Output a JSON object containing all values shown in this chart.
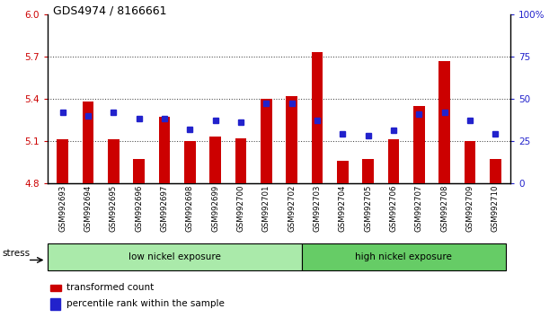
{
  "title": "GDS4974 / 8166661",
  "samples": [
    "GSM992693",
    "GSM992694",
    "GSM992695",
    "GSM992696",
    "GSM992697",
    "GSM992698",
    "GSM992699",
    "GSM992700",
    "GSM992701",
    "GSM992702",
    "GSM992703",
    "GSM992704",
    "GSM992705",
    "GSM992706",
    "GSM992707",
    "GSM992708",
    "GSM992709",
    "GSM992710"
  ],
  "red_values": [
    5.11,
    5.38,
    5.11,
    4.97,
    5.27,
    5.1,
    5.13,
    5.12,
    5.4,
    5.42,
    5.73,
    4.96,
    4.97,
    5.11,
    5.35,
    5.67,
    5.1,
    4.97
  ],
  "blue_values": [
    42,
    40,
    42,
    38,
    38,
    32,
    37,
    36,
    47,
    47,
    37,
    29,
    28,
    31,
    41,
    42,
    37,
    29
  ],
  "ylim_left": [
    4.8,
    6.0
  ],
  "ylim_right": [
    0,
    100
  ],
  "yticks_left": [
    4.8,
    5.1,
    5.4,
    5.7,
    6.0
  ],
  "yticks_right": [
    0,
    25,
    50,
    75,
    100
  ],
  "bar_bottom": 4.8,
  "red_color": "#cc0000",
  "blue_color": "#2222cc",
  "group1_label": "low nickel exposure",
  "group2_label": "high nickel exposure",
  "group1_count": 10,
  "stress_label": "stress",
  "legend_red": "transformed count",
  "legend_blue": "percentile rank within the sample",
  "group1_color": "#aaeaaa",
  "group2_color": "#66cc66",
  "hgrid_color": "#444444",
  "bg_plot": "#ffffff",
  "tick_area_color": "#c8c8c8",
  "title_fontsize": 9,
  "axis_label_color_left": "#cc0000",
  "axis_label_color_right": "#2222cc"
}
